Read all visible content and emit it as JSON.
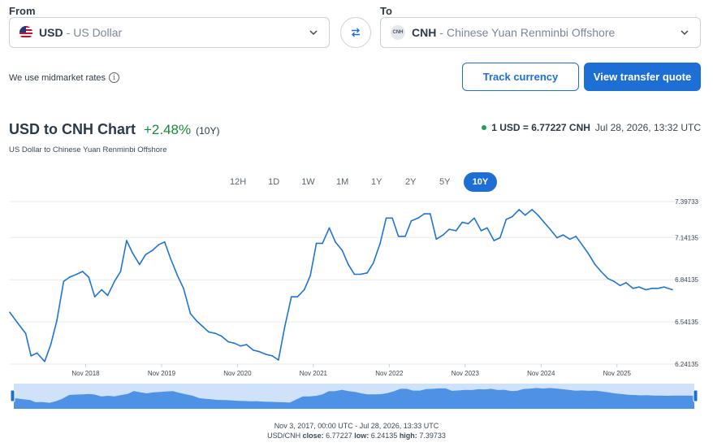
{
  "from": {
    "label": "From",
    "code": "USD",
    "separator": "-",
    "name": "US Dollar",
    "icon": "us-flag-icon"
  },
  "to": {
    "label": "To",
    "code": "CNH",
    "separator": "-",
    "name": "Chinese Yuan Renminbi Offshore",
    "badge": "CNH"
  },
  "info": {
    "text": "We use midmarket rates",
    "icon": "i"
  },
  "buttons": {
    "track": "Track currency",
    "quote": "View transfer quote"
  },
  "header": {
    "title": "USD to CNH Chart",
    "change": "+2.48%",
    "period": "(10Y)",
    "subtitle": "US Dollar to Chinese Yuan Renminbi Offshore",
    "rate": "1 USD = 6.77227 CNH",
    "timestamp": "Jul 28, 2026, 13:32 UTC"
  },
  "tabs": [
    "12H",
    "1D",
    "1W",
    "1M",
    "1Y",
    "2Y",
    "5Y",
    "10Y"
  ],
  "active_tab": "10Y",
  "colors": {
    "accent": "#1d6fd6",
    "line": "#1f74d4",
    "positive": "#1c8a3b",
    "live_dot": "#1ca34a",
    "navigator_fill": "#4e92e6",
    "navigator_bg": "#cfe2f9"
  },
  "chart_data": {
    "type": "line",
    "series": [
      {
        "x": [
          2017.84,
          2017.95,
          2018.05,
          2018.12,
          2018.2,
          2018.3,
          2018.38,
          2018.46,
          2018.55,
          2018.63,
          2018.72,
          2018.8,
          2018.88,
          2018.96,
          2019.05,
          2019.13,
          2019.22,
          2019.3,
          2019.38,
          2019.46,
          2019.55,
          2019.63,
          2019.72,
          2019.8,
          2019.88,
          2019.96,
          2020.05,
          2020.13,
          2020.22,
          2020.3,
          2020.38,
          2020.46,
          2020.55,
          2020.63,
          2020.72,
          2020.8,
          2020.88,
          2020.96,
          2021.05,
          2021.13,
          2021.22,
          2021.3,
          2021.38,
          2021.46,
          2021.55,
          2021.63,
          2021.72,
          2021.8,
          2021.88,
          2021.96,
          2022.05,
          2022.13,
          2022.22,
          2022.3,
          2022.38,
          2022.46,
          2022.55,
          2022.63,
          2022.72,
          2022.8,
          2022.88,
          2022.96,
          2023.05,
          2023.13,
          2023.22,
          2023.3,
          2023.38,
          2023.46,
          2023.55,
          2023.63,
          2023.72,
          2023.8,
          2023.88,
          2023.96,
          2024.05,
          2024.13,
          2024.22,
          2024.3,
          2024.38,
          2024.46,
          2024.55,
          2024.63,
          2024.72,
          2024.8,
          2024.88,
          2024.96,
          2025.05,
          2025.13,
          2025.22,
          2025.3,
          2025.38,
          2025.46,
          2025.55,
          2025.63,
          2025.72,
          2025.8,
          2025.88,
          2025.96,
          2026.05,
          2026.13,
          2026.22,
          2026.3,
          2026.38,
          2026.46,
          2026.57
        ],
        "y": [
          6.61,
          6.53,
          6.46,
          6.3,
          6.32,
          6.26,
          6.38,
          6.55,
          6.83,
          6.86,
          6.88,
          6.9,
          6.86,
          6.72,
          6.77,
          6.73,
          6.83,
          6.9,
          7.12,
          7.03,
          6.95,
          7.02,
          7.05,
          7.09,
          7.11,
          6.99,
          6.87,
          6.78,
          6.6,
          6.55,
          6.51,
          6.47,
          6.46,
          6.44,
          6.4,
          6.39,
          6.37,
          6.38,
          6.34,
          6.33,
          6.31,
          6.3,
          6.27,
          6.5,
          6.72,
          6.72,
          6.77,
          6.87,
          7.1,
          7.1,
          7.21,
          7.11,
          7.05,
          6.95,
          6.88,
          6.88,
          6.89,
          6.96,
          7.1,
          7.28,
          7.28,
          7.15,
          7.15,
          7.26,
          7.28,
          7.31,
          7.31,
          7.13,
          7.16,
          7.2,
          7.19,
          7.25,
          7.24,
          7.28,
          7.19,
          7.21,
          7.12,
          7.14,
          7.27,
          7.29,
          7.34,
          7.3,
          7.34,
          7.3,
          7.25,
          7.2,
          7.14,
          7.16,
          7.13,
          7.15,
          7.09,
          7.03,
          6.95,
          6.9,
          6.85,
          6.83,
          6.8,
          6.82,
          6.78,
          6.79,
          6.77,
          6.78,
          6.78,
          6.79,
          6.77
        ]
      }
    ],
    "y_ticks": [
      "7.39733",
      "7.14135",
      "6.84135",
      "6.54135",
      "6.24135"
    ],
    "y_tick_values": [
      7.39733,
      7.14135,
      6.84135,
      6.54135,
      6.24135
    ],
    "x_ticks": [
      "Nov 2018",
      "Nov 2019",
      "Nov 2020",
      "Nov 2021",
      "Nov 2022",
      "Nov 2023",
      "Nov 2024",
      "Nov 2025"
    ],
    "x_tick_values": [
      2018.84,
      2019.84,
      2020.84,
      2021.84,
      2022.84,
      2023.84,
      2024.84,
      2025.84
    ],
    "xlim": [
      2017.84,
      2026.57
    ],
    "ylim": [
      6.24135,
      7.39733
    ],
    "grid": "horizontal"
  },
  "footer": {
    "range": "Nov 3, 2017, 00:00 UTC - Jul 28, 2026, 13:33 UTC",
    "pair": "USD/CNH",
    "close_label": "close:",
    "close": "6.77227",
    "low_label": "low:",
    "low": "6.24135",
    "high_label": "high:",
    "high": "7.39733"
  }
}
